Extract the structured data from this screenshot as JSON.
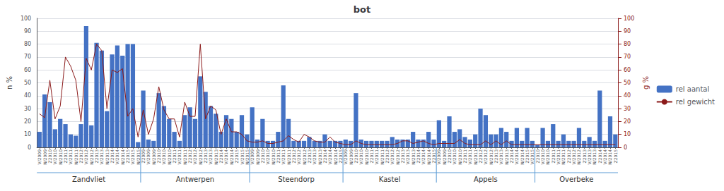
{
  "chart_data": {
    "type": "bar",
    "title": "bot",
    "ylabel": "n %",
    "y2label": "g %",
    "ylim": [
      0,
      100
    ],
    "yticks": [
      0,
      10,
      20,
      30,
      40,
      50,
      60,
      70,
      80,
      90,
      100
    ],
    "y2lim": [
      0,
      100
    ],
    "y2ticks": [
      0,
      10,
      20,
      30,
      40,
      50,
      60,
      70,
      80,
      90,
      100
    ],
    "grid": true,
    "legend": "right",
    "categories": [
      "V/2009",
      "N/2009",
      "Z2010",
      "V/2010",
      "N/2010",
      "Z2011",
      "V/2011",
      "N/2011",
      "Z2012",
      "V/2012",
      "N/2012",
      "Z2013",
      "V/2013",
      "N/2013",
      "Z2014",
      "V/2014",
      "N/2014",
      "Z2015",
      "V/2015",
      "N/2015",
      "Z2009",
      "V/2009",
      "N/2009",
      "Z2010",
      "V/2010",
      "N/2010",
      "Z2011",
      "V/2011",
      "N/2011",
      "Z2012",
      "V/2012",
      "N/2012",
      "Z2013",
      "V/2013",
      "N/2013",
      "Z2014",
      "V/2014",
      "N/2014",
      "Z2015",
      "V/2015",
      "N/2015",
      "V/2009",
      "N/2009",
      "Z2010",
      "V/2010",
      "N/2010",
      "Z2011",
      "V/2011",
      "N/2011",
      "Z2012",
      "V/2012",
      "N/2012",
      "Z2013",
      "V/2013",
      "N/2013",
      "Z2014",
      "V/2014",
      "N/2014",
      "Z2015",
      "V/2009",
      "N/2009",
      "Z2010",
      "V/2010",
      "N/2010",
      "Z2011",
      "V/2011",
      "N/2011",
      "Z2012",
      "V/2012",
      "N/2012",
      "Z2013",
      "V/2013",
      "N/2013",
      "Z2014",
      "V/2014",
      "N/2014",
      "Z2015",
      "V/2009",
      "N/2009",
      "Z2010",
      "V/2010",
      "N/2010",
      "Z2011",
      "V/2011",
      "N/2011",
      "Z2012",
      "V/2012",
      "N/2012",
      "Z2013",
      "V/2013",
      "N/2013",
      "Z2014",
      "V/2014",
      "N/2014",
      "Z2015",
      "V/2015",
      "Z2010",
      "V/2010",
      "N/2010",
      "Z2011",
      "V/2011",
      "N/2011",
      "Z2012",
      "V/2012",
      "N/2012",
      "Z2013",
      "V/2013",
      "N/2013",
      "Z2014",
      "V/2014",
      "N/2014",
      "Z2015"
    ],
    "series": [
      {
        "name": "rel aantal",
        "type": "bar",
        "color": "#4472C4",
        "values": [
          12,
          41,
          35,
          14,
          22,
          18,
          10,
          9,
          18,
          94,
          17,
          81,
          75,
          28,
          72,
          79,
          71,
          80,
          80,
          4,
          44,
          6,
          5,
          42,
          32,
          22,
          12,
          5,
          25,
          31,
          22,
          55,
          43,
          32,
          26,
          12,
          25,
          22,
          12,
          25,
          10,
          31,
          6,
          22,
          5,
          5,
          12,
          48,
          22,
          5,
          5,
          5,
          8,
          5,
          5,
          10,
          5,
          5,
          5,
          6,
          5,
          42,
          6,
          5,
          5,
          5,
          5,
          5,
          8,
          6,
          6,
          6,
          12,
          6,
          6,
          12,
          6,
          21,
          5,
          24,
          12,
          14,
          8,
          6,
          10,
          30,
          25,
          10,
          10,
          15,
          12,
          5,
          15,
          5,
          15,
          5,
          2,
          15,
          5,
          18,
          5,
          10,
          5,
          5,
          15,
          5,
          8,
          5,
          44,
          5,
          24,
          10
        ]
      },
      {
        "name": "rel gewicht",
        "type": "line",
        "axis": "y2",
        "color": "#8B1A1A",
        "values": [
          26,
          23,
          52,
          22,
          32,
          70,
          63,
          52,
          20,
          69,
          60,
          80,
          75,
          30,
          60,
          58,
          61,
          24,
          30,
          8,
          29,
          10,
          22,
          47,
          29,
          22,
          22,
          8,
          35,
          24,
          24,
          80,
          22,
          32,
          29,
          10,
          22,
          12,
          12,
          10,
          5,
          4,
          4,
          5,
          3,
          3,
          4,
          5,
          9,
          6,
          4,
          10,
          8,
          5,
          4,
          4,
          8,
          4,
          3,
          2,
          2,
          5,
          3,
          2,
          2,
          2,
          2,
          2,
          2,
          3,
          5,
          5,
          3,
          4,
          5,
          3,
          2,
          3,
          3,
          3,
          3,
          6,
          3,
          2,
          2,
          2,
          5,
          2,
          5,
          2,
          5,
          2,
          2,
          2,
          2,
          2,
          2,
          2,
          2,
          2,
          2,
          2,
          2,
          2,
          2,
          2,
          2,
          2,
          2,
          2,
          2,
          2
        ]
      }
    ],
    "groups": [
      {
        "label": "Zandvliet",
        "size": 20
      },
      {
        "label": "Antwerpen",
        "size": 21
      },
      {
        "label": "Steendorp",
        "size": 18
      },
      {
        "label": "Kastel",
        "size": 18
      },
      {
        "label": "Appels",
        "size": 19
      },
      {
        "label": "Overbeke",
        "size": 16
      }
    ]
  }
}
